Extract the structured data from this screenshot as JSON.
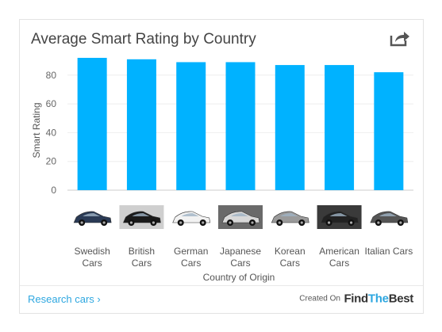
{
  "card": {
    "title": "Average Smart Rating by Country",
    "share_icon": "share-icon"
  },
  "chart_data": {
    "type": "bar",
    "title": "Average Smart Rating by Country",
    "xlabel": "Country of Origin",
    "ylabel": "Smart Rating",
    "ylim": [
      0,
      92
    ],
    "yticks": [
      0,
      20,
      40,
      60,
      80
    ],
    "grid": true,
    "legend": "none",
    "bar_color": "#00b2ff",
    "categories": [
      [
        "Swedish",
        "Cars"
      ],
      [
        "British",
        "Cars"
      ],
      [
        "German",
        "Cars"
      ],
      [
        "Japanese",
        "Cars"
      ],
      [
        "Korean",
        "Cars"
      ],
      [
        "American",
        "Cars"
      ],
      [
        "Italian Cars"
      ]
    ],
    "values": [
      92,
      91,
      89,
      89,
      87,
      87,
      82
    ]
  },
  "category_images": [
    {
      "name": "swedish-car-image",
      "body": "#2a3a55",
      "bg": "#ffffff"
    },
    {
      "name": "british-car-image",
      "body": "#1a1a1a",
      "bg": "#cfcfcf"
    },
    {
      "name": "german-car-image",
      "body": "#f2f2f2",
      "bg": "#ffffff"
    },
    {
      "name": "japanese-car-image",
      "body": "#d8d8d8",
      "bg": "#6a6a6a"
    },
    {
      "name": "korean-car-image",
      "body": "#9a9a9a",
      "bg": "#ffffff"
    },
    {
      "name": "american-car-image",
      "body": "#222222",
      "bg": "#3a3a3a"
    },
    {
      "name": "italian-car-image",
      "body": "#555555",
      "bg": "#ffffff"
    }
  ],
  "footer": {
    "research_link": "Research cars ›",
    "created_on": "Created On",
    "brand_find": "Find",
    "brand_the": "The",
    "brand_best": "Best"
  }
}
